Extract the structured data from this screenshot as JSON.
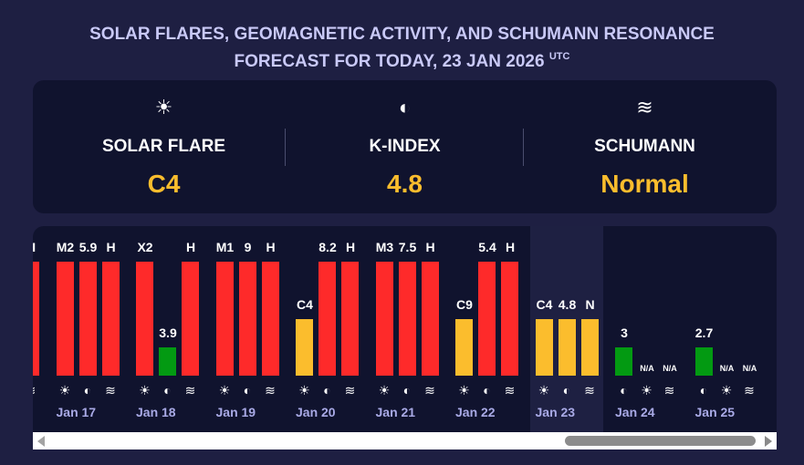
{
  "header": {
    "title_line1": "SOLAR FLARES, GEOMAGNETIC ACTIVITY, AND SCHUMANN RESONANCE",
    "title_line2": "FORECAST FOR TODAY, 23 JAN 2026",
    "title_suffix": "UTC"
  },
  "summary": [
    {
      "icon": "sun-icon",
      "glyph": "☀",
      "label": "SOLAR FLARE",
      "value": "C4"
    },
    {
      "icon": "magnet-icon",
      "glyph": "◐",
      "label": "K-INDEX",
      "value": "4.8"
    },
    {
      "icon": "waves-icon",
      "glyph": "≋",
      "label": "SCHUMANN",
      "value": "Normal"
    }
  ],
  "colors": {
    "high": "#fe2a2a",
    "medium": "#fbbd2d",
    "low": "#039a12",
    "accent": "#fbbd2d"
  },
  "days": [
    {
      "date": "",
      "today": false,
      "bars": [
        {
          "type": "solar",
          "label": "",
          "level": "high"
        },
        {
          "type": "kindex",
          "label": "",
          "level": "high"
        },
        {
          "type": "schumann",
          "label": "H",
          "level": "high"
        }
      ]
    },
    {
      "date": "Jan 17",
      "today": false,
      "bars": [
        {
          "type": "solar",
          "label": "M2",
          "level": "high"
        },
        {
          "type": "kindex",
          "label": "5.9",
          "level": "high"
        },
        {
          "type": "schumann",
          "label": "H",
          "level": "high"
        }
      ]
    },
    {
      "date": "Jan 18",
      "today": false,
      "bars": [
        {
          "type": "solar",
          "label": "X2",
          "level": "high"
        },
        {
          "type": "kindex",
          "label": "3.9",
          "level": "low"
        },
        {
          "type": "schumann",
          "label": "H",
          "level": "high"
        }
      ]
    },
    {
      "date": "Jan 19",
      "today": false,
      "bars": [
        {
          "type": "solar",
          "label": "M1",
          "level": "high"
        },
        {
          "type": "kindex",
          "label": "9",
          "level": "high"
        },
        {
          "type": "schumann",
          "label": "H",
          "level": "high"
        }
      ]
    },
    {
      "date": "Jan 20",
      "today": false,
      "bars": [
        {
          "type": "solar",
          "label": "C4",
          "level": "medium"
        },
        {
          "type": "kindex",
          "label": "8.2",
          "level": "high"
        },
        {
          "type": "schumann",
          "label": "H",
          "level": "high"
        }
      ]
    },
    {
      "date": "Jan 21",
      "today": false,
      "bars": [
        {
          "type": "solar",
          "label": "M3",
          "level": "high"
        },
        {
          "type": "kindex",
          "label": "7.5",
          "level": "high"
        },
        {
          "type": "schumann",
          "label": "H",
          "level": "high"
        }
      ]
    },
    {
      "date": "Jan 22",
      "today": false,
      "bars": [
        {
          "type": "solar",
          "label": "C9",
          "level": "medium"
        },
        {
          "type": "kindex",
          "label": "5.4",
          "level": "high"
        },
        {
          "type": "schumann",
          "label": "H",
          "level": "high"
        }
      ]
    },
    {
      "date": "Jan 23",
      "today": true,
      "bars": [
        {
          "type": "solar",
          "label": "C4",
          "level": "medium"
        },
        {
          "type": "kindex",
          "label": "4.8",
          "level": "medium"
        },
        {
          "type": "schumann",
          "label": "N",
          "level": "medium"
        }
      ]
    },
    {
      "date": "Jan 24",
      "today": false,
      "bars": [
        {
          "type": "kindex",
          "label": "3",
          "level": "low"
        },
        {
          "type": "solar",
          "label": "N/A",
          "level": "none"
        },
        {
          "type": "schumann",
          "label": "N/A",
          "level": "none"
        }
      ]
    },
    {
      "date": "Jan 25",
      "today": false,
      "bars": [
        {
          "type": "kindex",
          "label": "2.7",
          "level": "low"
        },
        {
          "type": "solar",
          "label": "N/A",
          "level": "none"
        },
        {
          "type": "schumann",
          "label": "N/A",
          "level": "none"
        }
      ]
    }
  ]
}
